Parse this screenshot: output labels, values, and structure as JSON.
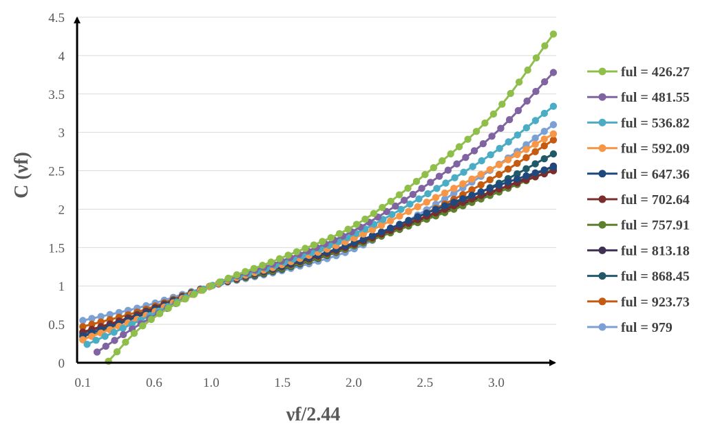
{
  "chart_data": {
    "type": "line",
    "title": "",
    "xlabel": "νf/2.44",
    "ylabel": "C (νf)",
    "xlim": [
      0.06,
      3.42
    ],
    "ylim": [
      0,
      4.5
    ],
    "x_ticks": [
      0.1,
      0.6,
      1.0,
      1.5,
      2.0,
      2.5,
      3.0
    ],
    "x_tick_labels": [
      "0.1",
      "0.6",
      "1.0",
      "1.5",
      "2.0",
      "2.5",
      "3.0"
    ],
    "y_ticks": [
      0,
      0.5,
      1,
      1.5,
      2,
      2.5,
      3,
      3.5,
      4,
      4.5
    ],
    "y_tick_labels": [
      "0",
      "0.5",
      "1",
      "1.5",
      "2",
      "2.5",
      "3",
      "3.5",
      "4",
      "4.5"
    ],
    "grid": "horizontal",
    "legend_position": "right",
    "x": [
      0.28,
      0.5,
      1.0,
      1.5,
      2.0,
      2.5,
      3.0,
      3.4
    ],
    "series": [
      {
        "name": "ful = 426.27",
        "color": "#8fbf4a",
        "x_start": 0.28,
        "values": [
          0.02,
          0.45,
          1.0,
          1.37,
          1.78,
          2.45,
          3.28,
          4.28
        ]
      },
      {
        "name": "ful = 481.55",
        "color": "#8064a2",
        "x_start": 0.2,
        "values": [
          0.14,
          0.5,
          1.0,
          1.33,
          1.72,
          2.3,
          3.0,
          3.78
        ]
      },
      {
        "name": "ful = 536.82",
        "color": "#4bacc6",
        "x_start": 0.13,
        "values": [
          0.24,
          0.55,
          1.0,
          1.3,
          1.67,
          2.18,
          2.76,
          3.34
        ]
      },
      {
        "name": "ful = 592.09",
        "color": "#f79646",
        "x_start": 0.1,
        "values": [
          0.3,
          0.58,
          1.0,
          1.28,
          1.62,
          2.08,
          2.56,
          2.98
        ]
      },
      {
        "name": "ful = 647.36",
        "color": "#1f497d",
        "x_start": 0.1,
        "values": [
          0.35,
          0.61,
          1.0,
          1.26,
          1.56,
          1.94,
          2.3,
          2.55
        ]
      },
      {
        "name": "ful = 702.64",
        "color": "#7b2c2c",
        "x_start": 0.1,
        "values": [
          0.4,
          0.63,
          1.0,
          1.25,
          1.54,
          1.9,
          2.25,
          2.5
        ]
      },
      {
        "name": "ful = 757.91",
        "color": "#5e7f2e",
        "x_start": 0.1,
        "values": [
          0.3,
          0.62,
          1.0,
          1.23,
          1.52,
          1.86,
          2.21,
          2.52
        ]
      },
      {
        "name": "ful = 813.18",
        "color": "#403152",
        "x_start": 0.1,
        "values": [
          0.34,
          0.63,
          1.0,
          1.23,
          1.52,
          1.87,
          2.24,
          2.56
        ]
      },
      {
        "name": "ful = 868.45",
        "color": "#215968",
        "x_start": 0.1,
        "values": [
          0.38,
          0.64,
          1.0,
          1.22,
          1.52,
          1.9,
          2.32,
          2.72
        ]
      },
      {
        "name": "ful = 923.73",
        "color": "#c55a11",
        "x_start": 0.1,
        "values": [
          0.47,
          0.67,
          1.0,
          1.22,
          1.52,
          1.94,
          2.43,
          2.9
        ]
      },
      {
        "name": "ful = 979",
        "color": "#7ba0d4",
        "x_start": 0.1,
        "values": [
          0.55,
          0.72,
          1.0,
          1.2,
          1.48,
          1.98,
          2.56,
          3.1
        ]
      }
    ]
  }
}
